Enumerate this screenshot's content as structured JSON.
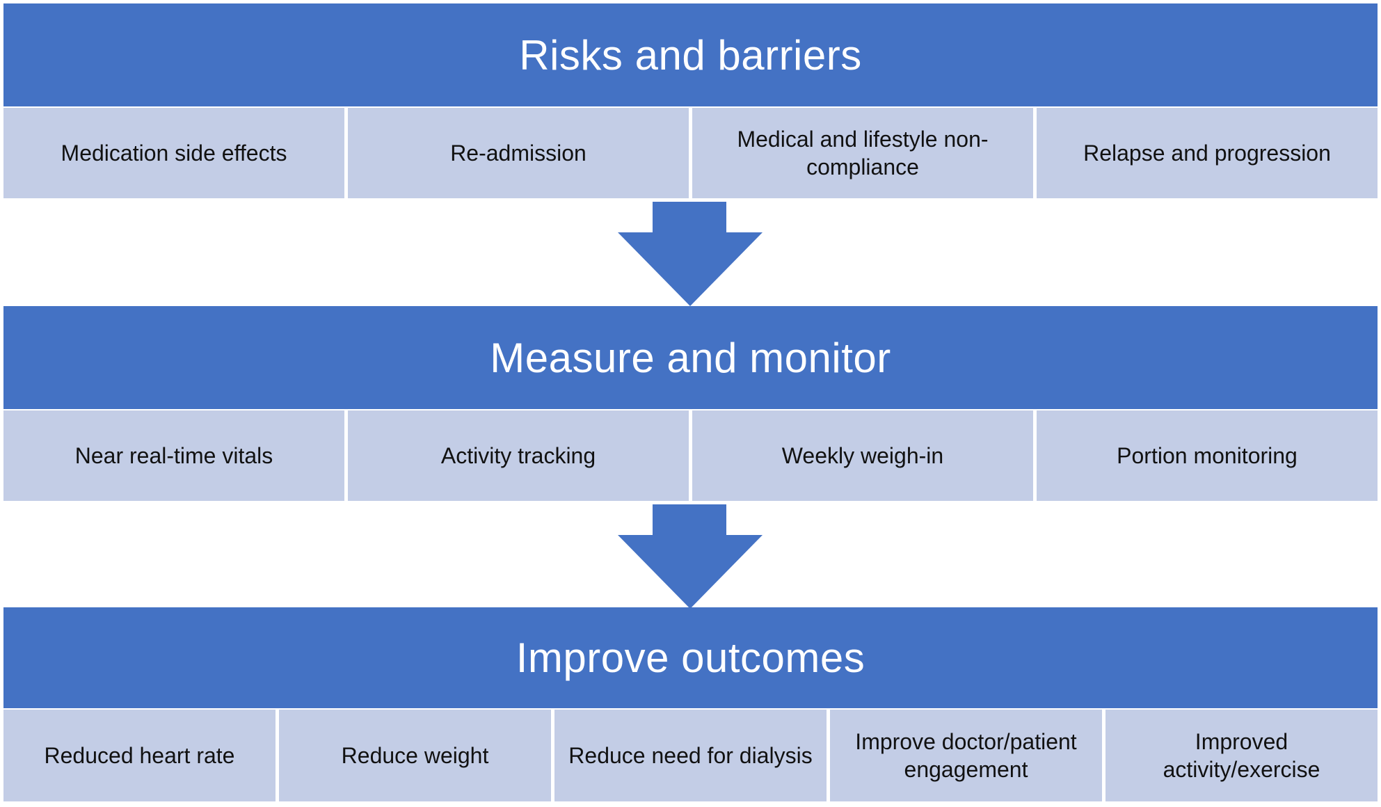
{
  "sections": [
    {
      "title": "Risks and barriers",
      "items": [
        "Medication side effects",
        "Re-admission",
        "Medical and lifestyle non-compliance",
        "Relapse and progression"
      ]
    },
    {
      "title": "Measure and monitor",
      "items": [
        "Near real-time vitals",
        "Activity tracking",
        "Weekly weigh-in",
        "Portion monitoring"
      ]
    },
    {
      "title": "Improve outcomes",
      "items": [
        "Reduced heart rate",
        "Reduce weight",
        "Reduce need for dialysis",
        "Improve doctor/patient engagement",
        "Improved activity/exercise"
      ]
    }
  ],
  "colors": {
    "header": "#4472C4",
    "cell": "#C3CDE6",
    "arrow": "#4472C4"
  },
  "icons": [
    "down-arrow-icon"
  ]
}
